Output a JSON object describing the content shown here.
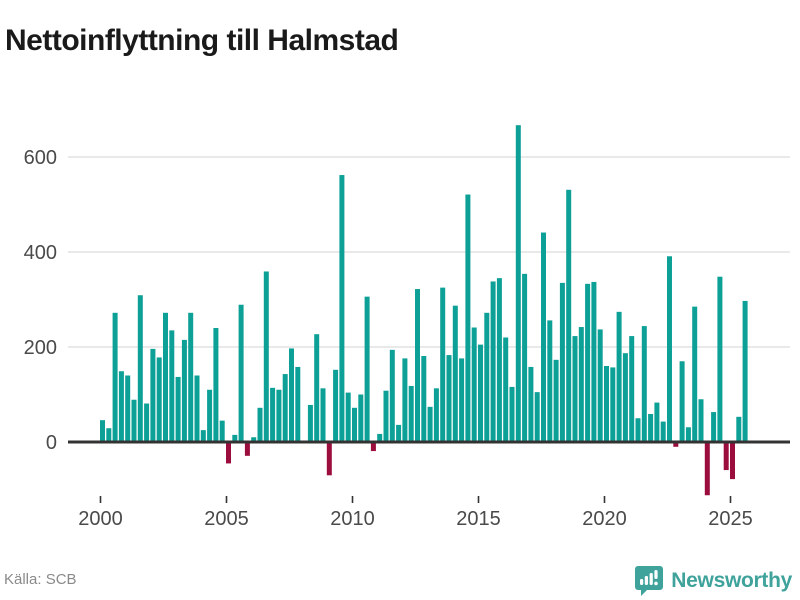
{
  "title": "Nettoinflyttning till Halmstad",
  "source": "Källa: SCB",
  "branding": {
    "name": "Newsworthy",
    "color": "#3fa39b",
    "logo_icon": "bar-chart-speech-bubble"
  },
  "colors": {
    "positive_bar": "#0da096",
    "negative_bar": "#9b0d3d",
    "gridline": "#e2e2e2",
    "zero_line": "#333333",
    "axis_text": "#4a4a4a",
    "tick_mark": "#333333",
    "title_text": "#1a1a1a",
    "source_text": "#8a8a8a"
  },
  "chart_data": {
    "type": "bar",
    "title": "Nettoinflyttning till Halmstad",
    "frequency": "quarterly",
    "start": "2000 Q1",
    "end": "2025 Q3",
    "xlabel": "",
    "ylabel": "",
    "x_tick_years": [
      2000,
      2005,
      2010,
      2015,
      2020,
      2025
    ],
    "y_ticks": [
      0,
      200,
      400,
      600
    ],
    "ylim": [
      -150,
      700
    ],
    "grid": "horizontal",
    "legend": "none",
    "series": [
      {
        "name": "Nettoinflyttning",
        "values": [
          46,
          29,
          272,
          149,
          140,
          89,
          309,
          81,
          196,
          178,
          272,
          235,
          137,
          215,
          272,
          140,
          25,
          110,
          240,
          45,
          -43,
          15,
          289,
          -27,
          10,
          72,
          359,
          114,
          110,
          143,
          197,
          158,
          2,
          78,
          227,
          113,
          -68,
          152,
          562,
          104,
          72,
          100,
          306,
          -17,
          17,
          108,
          194,
          36,
          176,
          118,
          322,
          181,
          74,
          113,
          325,
          183,
          287,
          176,
          521,
          241,
          205,
          272,
          338,
          345,
          220,
          116,
          667,
          354,
          158,
          105,
          441,
          256,
          173,
          335,
          531,
          223,
          242,
          333,
          337,
          237,
          160,
          157,
          274,
          187,
          223,
          50,
          244,
          59,
          83,
          43,
          391,
          -8,
          170,
          31,
          285,
          90,
          -110,
          63,
          348,
          -57,
          -76,
          53,
          297
        ]
      }
    ]
  }
}
